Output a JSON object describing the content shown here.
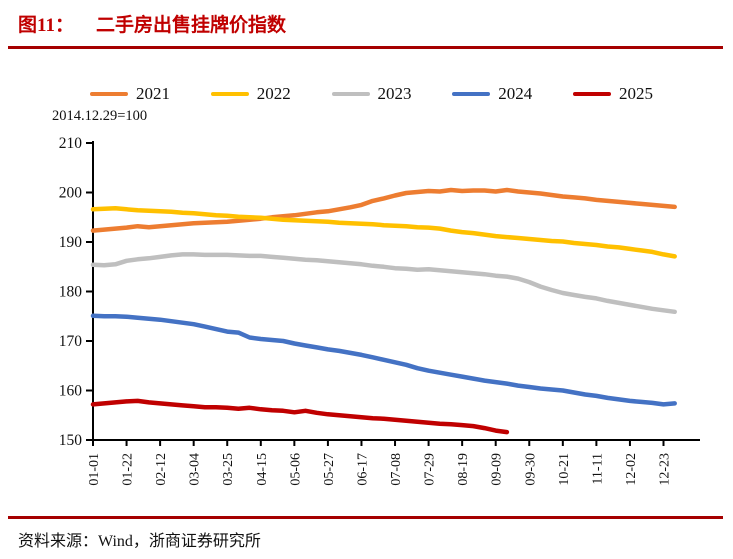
{
  "figure": {
    "prefix": "图11：",
    "title": "二手房出售挂牌价指数"
  },
  "subtitle": "2014.12.29=100",
  "source": "资料来源：Wind，浙商证券研究所",
  "colors": {
    "title_red": "#C00000",
    "rule_red": "#A50000",
    "axis_black": "#000000"
  },
  "legend": {
    "items": [
      {
        "label": "2021",
        "color": "#ED7D31"
      },
      {
        "label": "2022",
        "color": "#FFC000"
      },
      {
        "label": "2023",
        "color": "#BFBFBF"
      },
      {
        "label": "2024",
        "color": "#4472C4"
      },
      {
        "label": "2025",
        "color": "#C00000"
      }
    ]
  },
  "chart_data": {
    "type": "line",
    "title": "二手房出售挂牌价指数",
    "note": "2014.12.29=100",
    "grid": false,
    "legend_position": "top",
    "ylim": [
      150,
      210
    ],
    "ytick_step": 10,
    "x_unit": "weekly observations; axis ticks every 3 weeks",
    "x_tick_labels": [
      "01-01",
      "01-22",
      "02-12",
      "03-04",
      "03-25",
      "04-15",
      "05-06",
      "05-27",
      "06-17",
      "07-08",
      "07-29",
      "08-19",
      "09-09",
      "09-30",
      "10-21",
      "11-11",
      "12-02",
      "12-23"
    ],
    "weeks_per_tick": 3,
    "series": [
      {
        "name": "2021",
        "color": "#ED7D31",
        "values": [
          192.3,
          192.5,
          192.7,
          192.9,
          193.2,
          193.0,
          193.2,
          193.4,
          193.6,
          193.8,
          193.9,
          194.0,
          194.1,
          194.3,
          194.5,
          194.7,
          195.0,
          195.2,
          195.4,
          195.7,
          196.0,
          196.2,
          196.6,
          197.0,
          197.5,
          198.3,
          198.8,
          199.4,
          199.9,
          200.1,
          200.3,
          200.2,
          200.5,
          200.3,
          200.4,
          200.4,
          200.2,
          200.5,
          200.2,
          200.0,
          199.8,
          199.5,
          199.2,
          199.0,
          198.8,
          198.5,
          198.3,
          198.1,
          197.9,
          197.7,
          197.5,
          197.3,
          197.1
        ]
      },
      {
        "name": "2022",
        "color": "#FFC000",
        "values": [
          196.6,
          196.7,
          196.8,
          196.6,
          196.4,
          196.3,
          196.2,
          196.1,
          195.9,
          195.8,
          195.6,
          195.4,
          195.3,
          195.1,
          195.0,
          194.9,
          194.7,
          194.5,
          194.4,
          194.3,
          194.2,
          194.1,
          193.9,
          193.8,
          193.7,
          193.6,
          193.4,
          193.3,
          193.2,
          193.0,
          192.9,
          192.7,
          192.3,
          192.0,
          191.8,
          191.5,
          191.2,
          191.0,
          190.8,
          190.6,
          190.4,
          190.2,
          190.1,
          189.8,
          189.6,
          189.4,
          189.1,
          188.9,
          188.6,
          188.3,
          188.0,
          187.5,
          187.1
        ]
      },
      {
        "name": "2023",
        "color": "#BFBFBF",
        "values": [
          185.4,
          185.3,
          185.5,
          186.2,
          186.5,
          186.7,
          187.0,
          187.3,
          187.5,
          187.5,
          187.4,
          187.4,
          187.4,
          187.3,
          187.2,
          187.2,
          187.0,
          186.8,
          186.6,
          186.4,
          186.3,
          186.1,
          185.9,
          185.7,
          185.5,
          185.2,
          185.0,
          184.7,
          184.6,
          184.4,
          184.5,
          184.3,
          184.1,
          183.9,
          183.7,
          183.5,
          183.2,
          183.0,
          182.6,
          181.9,
          181.0,
          180.3,
          179.7,
          179.3,
          178.9,
          178.6,
          178.1,
          177.7,
          177.3,
          176.9,
          176.5,
          176.2,
          175.9
        ]
      },
      {
        "name": "2024",
        "color": "#4472C4",
        "values": [
          175.1,
          175.0,
          175.0,
          174.9,
          174.7,
          174.5,
          174.3,
          174.0,
          173.7,
          173.4,
          172.9,
          172.4,
          171.9,
          171.7,
          170.7,
          170.4,
          170.2,
          170.0,
          169.5,
          169.1,
          168.7,
          168.3,
          168.0,
          167.6,
          167.2,
          166.7,
          166.2,
          165.7,
          165.2,
          164.5,
          164.0,
          163.6,
          163.2,
          162.8,
          162.4,
          162.0,
          161.7,
          161.4,
          161.0,
          160.7,
          160.4,
          160.2,
          160.0,
          159.6,
          159.2,
          158.9,
          158.5,
          158.2,
          157.9,
          157.7,
          157.5,
          157.2,
          157.4
        ]
      },
      {
        "name": "2025",
        "color": "#C00000",
        "values": [
          157.2,
          157.4,
          157.6,
          157.8,
          157.9,
          157.6,
          157.4,
          157.2,
          157.0,
          156.8,
          156.6,
          156.6,
          156.5,
          156.3,
          156.5,
          156.2,
          156.0,
          155.9,
          155.6,
          155.9,
          155.5,
          155.2,
          155.0,
          154.8,
          154.6,
          154.4,
          154.3,
          154.1,
          153.9,
          153.7,
          153.5,
          153.3,
          153.2,
          153.0,
          152.8,
          152.4,
          151.9,
          151.6
        ]
      }
    ]
  }
}
